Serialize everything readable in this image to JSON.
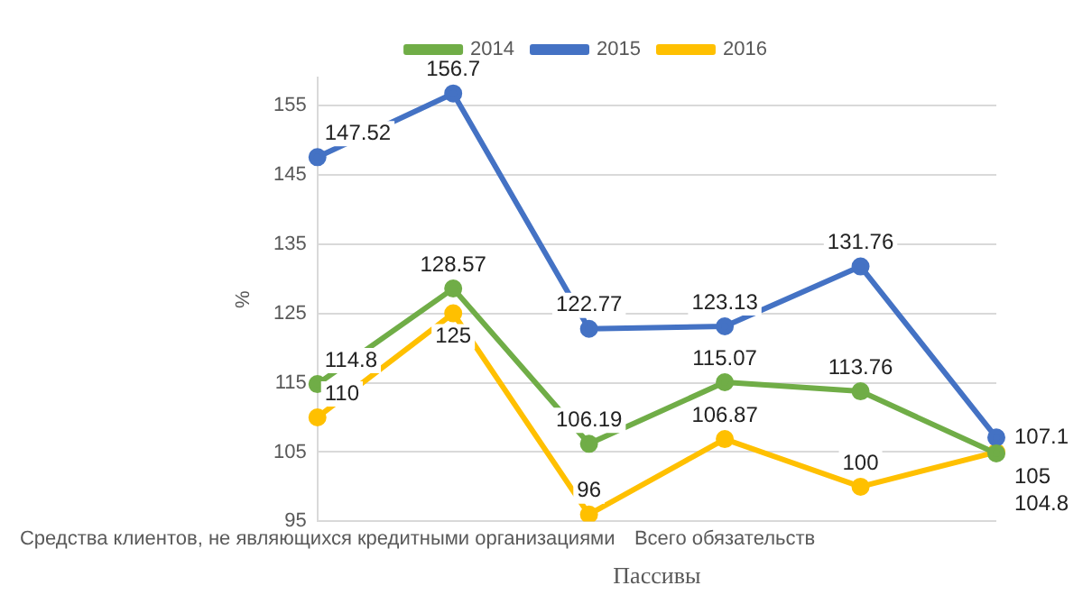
{
  "chart_data": {
    "type": "line",
    "xlabel": "Пассивы",
    "ylabel": "%",
    "categories": [
      "Средства клиентов, не являющихся кредитными организациями",
      null,
      null,
      "Всего обязательств",
      null,
      null
    ],
    "series": [
      {
        "name": "2014",
        "color": "#70ad47",
        "values": [
          114.8,
          128.57,
          106.19,
          115.07,
          113.76,
          104.8
        ]
      },
      {
        "name": "2015",
        "color": "#4472c4",
        "values": [
          147.52,
          156.7,
          122.77,
          123.13,
          131.76,
          107.1
        ]
      },
      {
        "name": "2016",
        "color": "#ffc000",
        "values": [
          110,
          125,
          96,
          106.87,
          100,
          105
        ]
      }
    ],
    "ylim": [
      95,
      159
    ],
    "yticks": [
      95,
      105,
      115,
      125,
      135,
      145,
      155
    ],
    "grid": "y",
    "legend": "top",
    "marker": "circle",
    "line_style": "solid",
    "data_labels": true
  }
}
